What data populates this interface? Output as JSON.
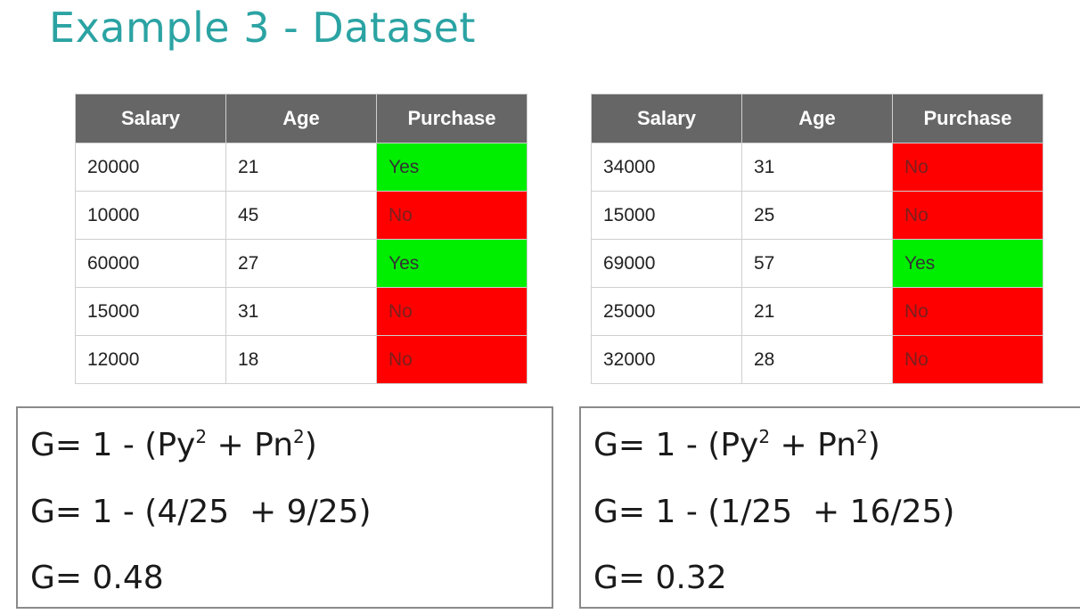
{
  "title": "Example 3 - Dataset",
  "tables": [
    {
      "headers": [
        "Salary",
        "Age",
        "Purchase"
      ],
      "rows": [
        {
          "salary": "20000",
          "age": "21",
          "purchase": "Yes"
        },
        {
          "salary": "10000",
          "age": "45",
          "purchase": "No"
        },
        {
          "salary": "60000",
          "age": "27",
          "purchase": "Yes"
        },
        {
          "salary": "15000",
          "age": "31",
          "purchase": "No"
        },
        {
          "salary": "12000",
          "age": "18",
          "purchase": "No"
        }
      ]
    },
    {
      "headers": [
        "Salary",
        "Age",
        "Purchase"
      ],
      "rows": [
        {
          "salary": "34000",
          "age": "31",
          "purchase": "No"
        },
        {
          "salary": "15000",
          "age": "25",
          "purchase": "No"
        },
        {
          "salary": "69000",
          "age": "57",
          "purchase": "Yes"
        },
        {
          "salary": "25000",
          "age": "21",
          "purchase": "No"
        },
        {
          "salary": "32000",
          "age": "28",
          "purchase": "No"
        }
      ]
    }
  ],
  "formulas": [
    {
      "general": {
        "prefix": "G= 1 - (Py",
        "exp1": "2",
        "mid": " + Pn",
        "exp2": "2",
        "suffix": ")"
      },
      "substituted": "G= 1 - (4/25  + 9/25)",
      "result": "G= 0.48"
    },
    {
      "general": {
        "prefix": "G= 1 - (Py",
        "exp1": "2",
        "mid": " + Pn",
        "exp2": "2",
        "suffix": ")"
      },
      "substituted": "G= 1 - (1/25  + 16/25)",
      "result": "G= 0.32"
    }
  ],
  "colors": {
    "title": "#2ba3a3",
    "header_bg": "#666666",
    "yes_bg": "#00ee00",
    "no_bg": "#ff0000"
  }
}
